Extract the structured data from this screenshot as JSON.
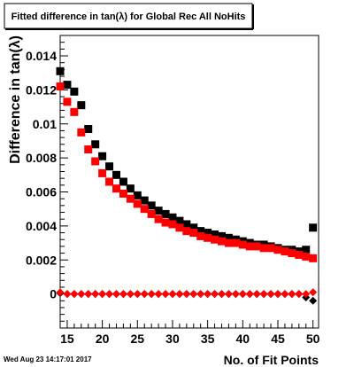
{
  "chart_data": {
    "type": "scatter",
    "title": "Fitted difference in tan(λ) for Global Rec All NoHits",
    "xlabel": "No. of Fit Points",
    "ylabel": "Difference in tan(λ)",
    "xlim": [
      14,
      50.8
    ],
    "ylim": [
      -0.002,
      0.0152
    ],
    "x_ticks": [
      15,
      20,
      25,
      30,
      35,
      40,
      45,
      50
    ],
    "y_ticks": [
      0,
      0.002,
      0.004,
      0.006,
      0.008,
      0.01,
      0.012,
      0.014
    ],
    "y_tick_labels": [
      "0",
      "0.002",
      "0.004",
      "0.006",
      "0.008",
      "0.01",
      "0.012",
      "0.014"
    ],
    "grid": false,
    "legend": "none",
    "series": [
      {
        "color": "#000000",
        "marker": "square",
        "points": [
          [
            14,
            0.0131
          ],
          [
            15,
            0.0123
          ],
          [
            16,
            0.0119
          ],
          [
            17,
            0.0111
          ],
          [
            18,
            0.0097
          ],
          [
            19,
            0.0088
          ],
          [
            20,
            0.0081
          ],
          [
            21,
            0.0075
          ],
          [
            22,
            0.007
          ],
          [
            23,
            0.0066
          ],
          [
            24,
            0.0062
          ],
          [
            25,
            0.0058
          ],
          [
            26,
            0.0055
          ],
          [
            27,
            0.0052
          ],
          [
            28,
            0.0049
          ],
          [
            29,
            0.0047
          ],
          [
            30,
            0.0045
          ],
          [
            31,
            0.0043
          ],
          [
            32,
            0.0041
          ],
          [
            33,
            0.0039
          ],
          [
            34,
            0.0037
          ],
          [
            35,
            0.0036
          ],
          [
            36,
            0.0035
          ],
          [
            37,
            0.0034
          ],
          [
            38,
            0.0033
          ],
          [
            39,
            0.0032
          ],
          [
            40,
            0.0031
          ],
          [
            41,
            0.003
          ],
          [
            42,
            0.0029
          ],
          [
            43,
            0.0029
          ],
          [
            44,
            0.0028
          ],
          [
            45,
            0.0027
          ],
          [
            46,
            0.0026
          ],
          [
            47,
            0.0026
          ],
          [
            48,
            0.0025
          ],
          [
            49,
            0.0026
          ],
          [
            50,
            0.0039
          ]
        ]
      },
      {
        "color": "#ff0000",
        "marker": "square",
        "points": [
          [
            14,
            0.0122
          ],
          [
            15,
            0.0113
          ],
          [
            16,
            0.0107
          ],
          [
            17,
            0.0095
          ],
          [
            18,
            0.0085
          ],
          [
            19,
            0.0078
          ],
          [
            20,
            0.0071
          ],
          [
            21,
            0.0066
          ],
          [
            22,
            0.0062
          ],
          [
            23,
            0.0059
          ],
          [
            24,
            0.0056
          ],
          [
            25,
            0.0053
          ],
          [
            26,
            0.005
          ],
          [
            27,
            0.0047
          ],
          [
            28,
            0.0044
          ],
          [
            29,
            0.0042
          ],
          [
            30,
            0.0041
          ],
          [
            31,
            0.0039
          ],
          [
            32,
            0.0037
          ],
          [
            33,
            0.0036
          ],
          [
            34,
            0.0034
          ],
          [
            35,
            0.0033
          ],
          [
            36,
            0.0032
          ],
          [
            37,
            0.0031
          ],
          [
            38,
            0.003
          ],
          [
            39,
            0.003
          ],
          [
            40,
            0.0029
          ],
          [
            41,
            0.0028
          ],
          [
            42,
            0.0028
          ],
          [
            43,
            0.0027
          ],
          [
            44,
            0.0027
          ],
          [
            45,
            0.0026
          ],
          [
            46,
            0.0025
          ],
          [
            47,
            0.0024
          ],
          [
            48,
            0.0023
          ],
          [
            49,
            0.0022
          ],
          [
            50,
            0.0021
          ]
        ]
      },
      {
        "color": "#000000",
        "marker": "diamond",
        "points": [
          [
            14,
            5e-05
          ],
          [
            15,
            0.0
          ],
          [
            16,
            0.0
          ],
          [
            17,
            0.0
          ],
          [
            18,
            0.0
          ],
          [
            19,
            0.0
          ],
          [
            20,
            0.0
          ],
          [
            21,
            0.0
          ],
          [
            22,
            0.0
          ],
          [
            23,
            0.0
          ],
          [
            24,
            0.0
          ],
          [
            25,
            0.0
          ],
          [
            26,
            0.0
          ],
          [
            27,
            0.0
          ],
          [
            28,
            0.0
          ],
          [
            29,
            0.0
          ],
          [
            30,
            0.0
          ],
          [
            31,
            0.0
          ],
          [
            32,
            0.0
          ],
          [
            33,
            0.0
          ],
          [
            34,
            0.0
          ],
          [
            35,
            0.0
          ],
          [
            36,
            0.0
          ],
          [
            37,
            0.0
          ],
          [
            38,
            0.0
          ],
          [
            39,
            0.0
          ],
          [
            40,
            0.0
          ],
          [
            41,
            0.0
          ],
          [
            42,
            0.0
          ],
          [
            43,
            0.0
          ],
          [
            44,
            0.0
          ],
          [
            45,
            0.0
          ],
          [
            46,
            0.0
          ],
          [
            47,
            0.0
          ],
          [
            48,
            0.0
          ],
          [
            49,
            -0.0002
          ],
          [
            50,
            -0.0004
          ]
        ]
      },
      {
        "color": "#ff0000",
        "marker": "diamond",
        "points": [
          [
            14,
            0.0001
          ],
          [
            15,
            0.0
          ],
          [
            16,
            0.0
          ],
          [
            17,
            0.0
          ],
          [
            18,
            0.0
          ],
          [
            19,
            0.0
          ],
          [
            20,
            0.0
          ],
          [
            21,
            0.0
          ],
          [
            22,
            0.0
          ],
          [
            23,
            0.0
          ],
          [
            24,
            0.0
          ],
          [
            25,
            0.0
          ],
          [
            26,
            0.0
          ],
          [
            27,
            0.0
          ],
          [
            28,
            0.0
          ],
          [
            29,
            0.0
          ],
          [
            30,
            0.0
          ],
          [
            31,
            0.0
          ],
          [
            32,
            0.0
          ],
          [
            33,
            0.0
          ],
          [
            34,
            0.0
          ],
          [
            35,
            0.0
          ],
          [
            36,
            0.0
          ],
          [
            37,
            0.0
          ],
          [
            38,
            0.0
          ],
          [
            39,
            0.0
          ],
          [
            40,
            0.0
          ],
          [
            41,
            0.0
          ],
          [
            42,
            0.0
          ],
          [
            43,
            0.0
          ],
          [
            44,
            0.0
          ],
          [
            45,
            0.0
          ],
          [
            46,
            0.0
          ],
          [
            47,
            0.0
          ],
          [
            48,
            0.0
          ],
          [
            49,
            0.0
          ],
          [
            50,
            0.0001
          ]
        ]
      }
    ]
  },
  "footer": {
    "timestamp": "Wed Aug 23 14:17:01 2017"
  }
}
